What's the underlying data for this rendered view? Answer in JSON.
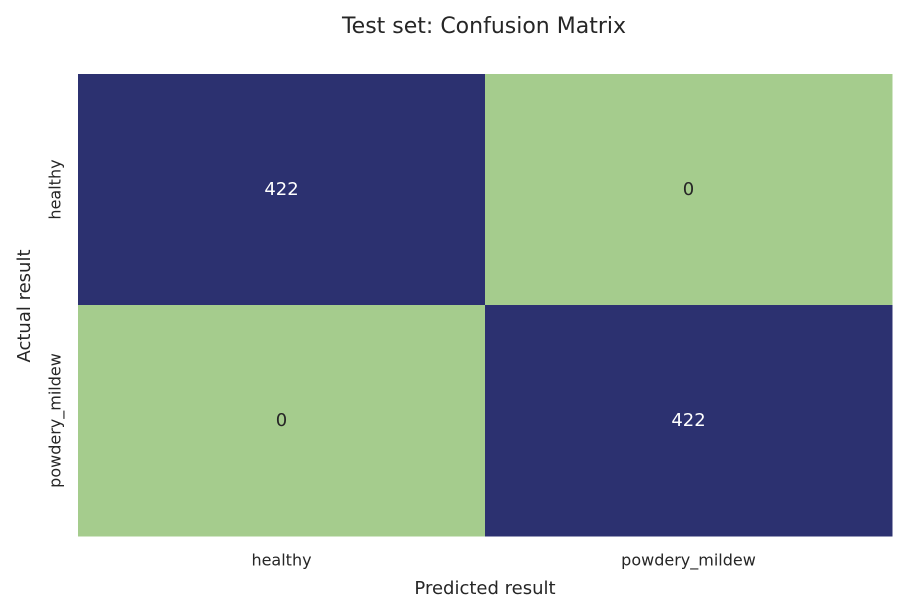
{
  "chart_data": {
    "type": "heatmap",
    "title": "Test set: Confusion Matrix",
    "xlabel": "Predicted result",
    "ylabel": "Actual result",
    "x_categories": [
      "healthy",
      "powdery_mildew"
    ],
    "y_categories": [
      "healthy",
      "powdery_mildew"
    ],
    "values": [
      [
        422,
        0
      ],
      [
        0,
        422
      ]
    ],
    "colors": {
      "high": "#2c3170",
      "low": "#a5cc8d",
      "text_on_high": "#ffffff",
      "text_on_low": "#262626"
    },
    "colorbar": false
  }
}
